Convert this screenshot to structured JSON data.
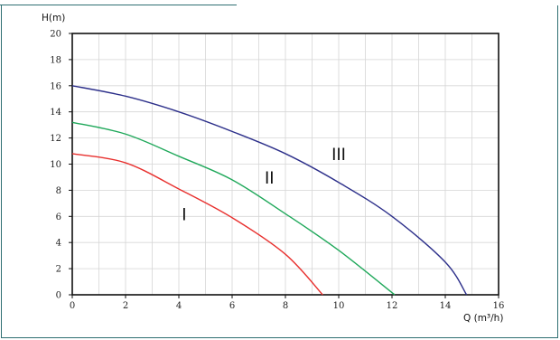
{
  "chart_data": {
    "type": "line",
    "title": "",
    "ylabel": "H(m)",
    "xlabel": "Q (m³/h)",
    "xlim": [
      0,
      16
    ],
    "ylim": [
      0,
      20
    ],
    "x_ticks": [
      "0",
      "2",
      "4",
      "6",
      "8",
      "10",
      "12",
      "14",
      "16"
    ],
    "y_ticks": [
      "0",
      "2",
      "4",
      "6",
      "8",
      "10",
      "12",
      "14",
      "16",
      "18",
      "20"
    ],
    "grid": true,
    "series": [
      {
        "name": "I",
        "color": "#e8302e",
        "x": [
          0,
          2,
          4,
          6,
          8,
          9.4
        ],
        "y": [
          10.8,
          10.1,
          8.1,
          5.9,
          3.1,
          0
        ]
      },
      {
        "name": "II",
        "color": "#1fa85a",
        "x": [
          0,
          2,
          4,
          6,
          8,
          10,
          12.1
        ],
        "y": [
          13.2,
          12.3,
          10.6,
          8.8,
          6.2,
          3.4,
          0
        ]
      },
      {
        "name": "III",
        "color": "#2c2f8a",
        "x": [
          0,
          2,
          4,
          6,
          8,
          10,
          12,
          14,
          14.8
        ],
        "y": [
          16,
          15.2,
          14.0,
          12.5,
          10.8,
          8.6,
          6.0,
          2.5,
          0
        ]
      }
    ]
  }
}
